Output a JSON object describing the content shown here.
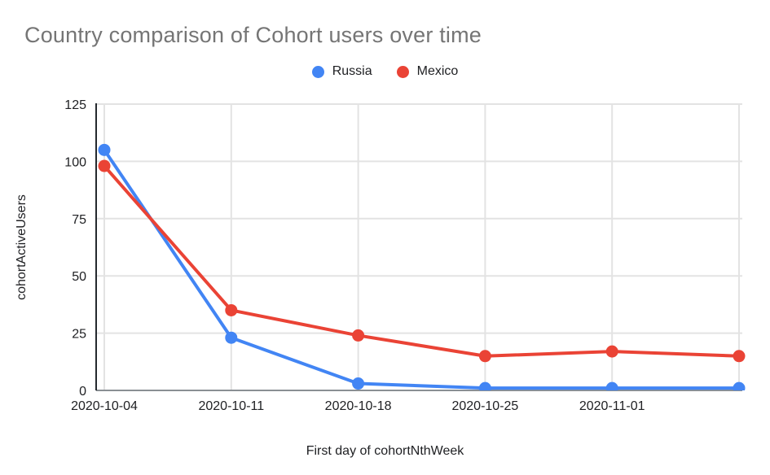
{
  "chart_data": {
    "type": "line",
    "title": "Country comparison of Cohort users over time",
    "xlabel": "First day of cohortNthWeek",
    "ylabel": "cohortActiveUsers",
    "x_tick_labels": [
      "2020-10-04",
      "2020-10-11",
      "2020-10-18",
      "2020-10-25",
      "2020-11-01",
      ""
    ],
    "num_points": 6,
    "series": [
      {
        "name": "Russia",
        "color": "#4285F4",
        "values": [
          105,
          23,
          3,
          1,
          1,
          1
        ]
      },
      {
        "name": "Mexico",
        "color": "#EA4335",
        "values": [
          98,
          35,
          24,
          15,
          17,
          15
        ]
      }
    ],
    "ylim": [
      0,
      125
    ],
    "yticks": [
      0,
      25,
      50,
      75,
      100,
      125
    ],
    "grid": true,
    "legend_position": "top-center",
    "colors": {
      "title_text": "#757575",
      "axis_text": "#202124",
      "gridline": "#e3e3e3",
      "baseline": "#8a8f94",
      "y_axis_line": "#24292e",
      "background": "#ffffff"
    }
  }
}
